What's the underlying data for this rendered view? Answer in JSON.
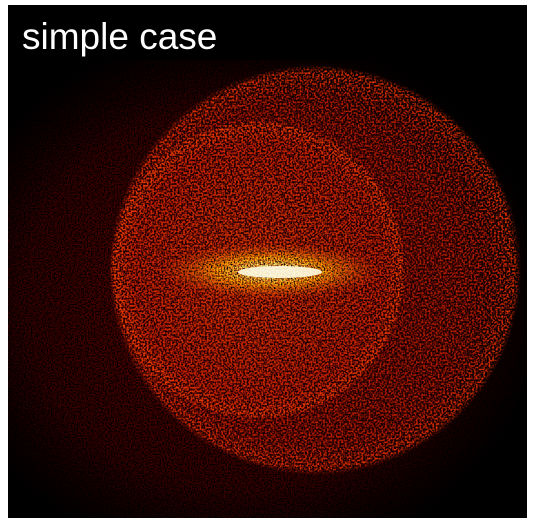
{
  "image": {
    "label": "simple case"
  }
}
